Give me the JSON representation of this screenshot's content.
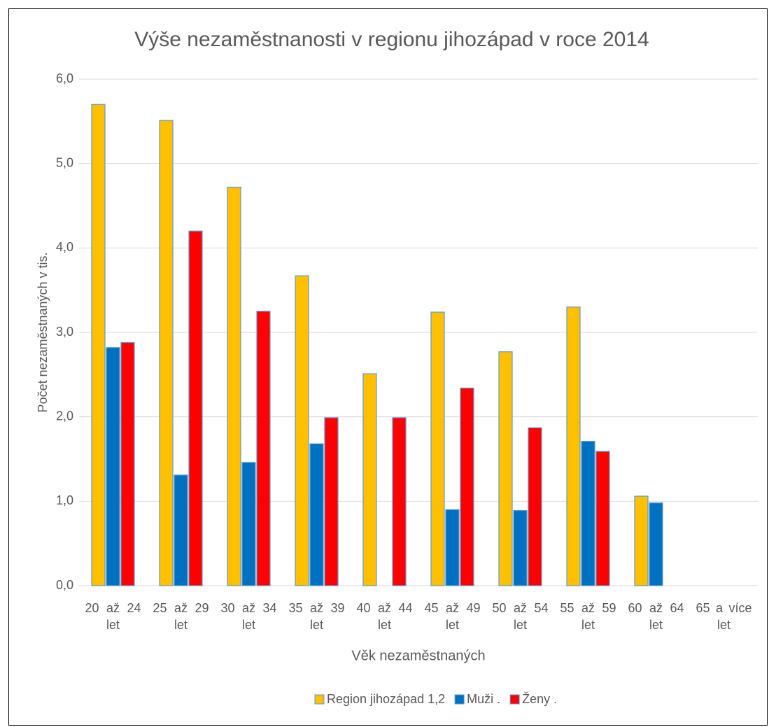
{
  "chart_data": {
    "type": "bar",
    "title": "Výše nezaměstnanosti v regionu jihozápad v roce 2014",
    "x_label": "Věk nezaměstnaných",
    "y_label": "Počet nezaměstnaných v tis.",
    "categories": [
      "20 až 24 let",
      "25 až 29 let",
      "30 až 34 let",
      "35 až 39 let",
      "40 až 44 let",
      "45 až 49 let",
      "50 až 54 let",
      "55 až 59 let",
      "60 až 64 let",
      "65 a více let"
    ],
    "series": [
      {
        "name": "Region jihozápad 1,2",
        "color": "#FFC000",
        "values": [
          5.7,
          5.51,
          4.72,
          3.67,
          2.51,
          3.24,
          2.77,
          3.3,
          1.06,
          null
        ]
      },
      {
        "name": "Muži .",
        "color": "#0070C0",
        "values": [
          2.82,
          1.31,
          1.46,
          1.68,
          null,
          0.9,
          0.89,
          1.71,
          0.98,
          null
        ]
      },
      {
        "name": "Ženy .",
        "color": "#FF0000",
        "values": [
          2.88,
          4.2,
          3.25,
          1.99,
          1.99,
          2.34,
          1.87,
          1.59,
          null,
          null
        ]
      }
    ],
    "ylim": [
      0,
      6
    ],
    "yticks": [
      {
        "value": 0,
        "label": "0,0"
      },
      {
        "value": 1,
        "label": "1,0"
      },
      {
        "value": 2,
        "label": "2,0"
      },
      {
        "value": 3,
        "label": "3,0"
      },
      {
        "value": 4,
        "label": "4,0"
      },
      {
        "value": 5,
        "label": "5,0"
      },
      {
        "value": 6,
        "label": "6,0"
      }
    ],
    "grid": true,
    "legend": "bottom"
  }
}
